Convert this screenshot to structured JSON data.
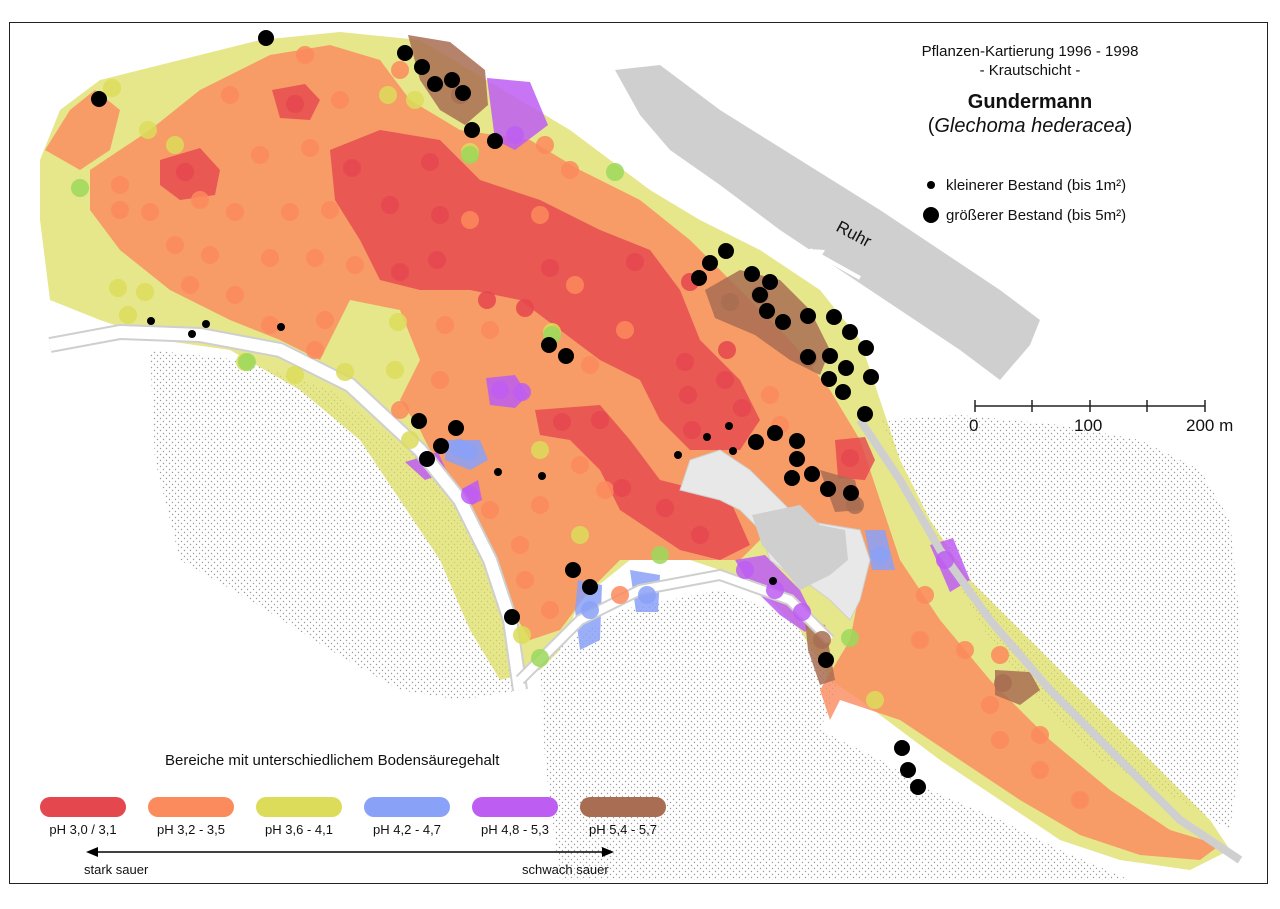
{
  "title": {
    "line1": "Pflanzen-Kartierung 1996 - 1998",
    "line2": "- Krautschicht -",
    "species": "Gundermann",
    "latin_open": "(",
    "latin": "Glechoma hederacea",
    "latin_close": ")"
  },
  "dot_legend": {
    "small_label": "kleinerer Bestand (bis 1m²)",
    "big_label": "größerer Bestand (bis 5m²)"
  },
  "river": {
    "name": "Ruhr"
  },
  "scale": {
    "ticks": [
      "0",
      "100",
      "200 m"
    ]
  },
  "ph_legend": {
    "title": "Bereiche mit unterschiedlichem Bodensäuregehalt",
    "classes": [
      {
        "label": "pH 3,0 / 3,1",
        "color": "#e5474f"
      },
      {
        "label": "pH 3,2 - 3,5",
        "color": "#fb8a5c"
      },
      {
        "label": "pH 3,6 - 4,1",
        "color": "#dcdc5a"
      },
      {
        "label": "pH 4,2 - 4,7",
        "color": "#89a1f7"
      },
      {
        "label": "pH 4,8 - 5,3",
        "color": "#bd5df2"
      },
      {
        "label": "pH 5,4 - 5,7",
        "color": "#a86d52"
      }
    ],
    "left_end": "stark sauer",
    "right_end": "schwach sauer"
  },
  "colors": {
    "ph30": "#e5474f",
    "ph32": "#fb8a5c",
    "ph36": "#dcdc5a",
    "ph42": "#89a1f7",
    "ph48": "#bd5df2",
    "ph54": "#a86d52",
    "green": "#9bd85a",
    "gray": "#cfcfcf",
    "hatch": "#bdbdbd"
  }
}
